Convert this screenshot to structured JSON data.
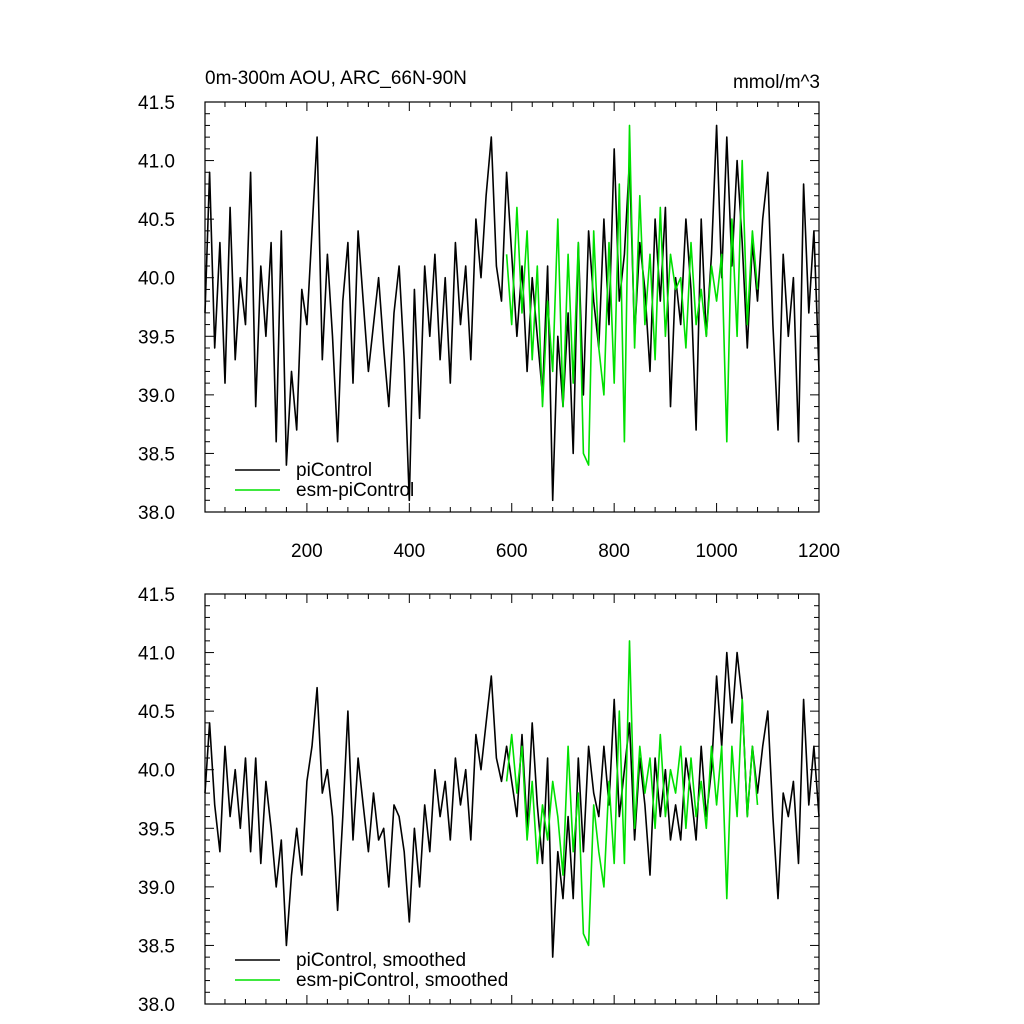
{
  "title_left": "0m-300m AOU, ARC_66N-90N",
  "title_right": "mmol/m^3",
  "colors": {
    "piControl": "#000000",
    "esm": "#00e000"
  },
  "chart_data": [
    {
      "type": "line",
      "xlim": [
        1,
        1200
      ],
      "ylim": [
        38.0,
        41.5
      ],
      "x_ticks": [
        200,
        400,
        600,
        800,
        1000,
        1200
      ],
      "y_ticks": [
        "38.0",
        "38.5",
        "39.0",
        "39.5",
        "40.0",
        "40.5",
        "41.0",
        "41.5"
      ],
      "legend_placement": "bottom-left",
      "series": [
        {
          "name": "piControl",
          "color": "#000000",
          "x": [
            1,
            10,
            20,
            30,
            40,
            50,
            60,
            70,
            80,
            90,
            100,
            110,
            120,
            130,
            140,
            150,
            160,
            170,
            180,
            190,
            200,
            210,
            220,
            230,
            240,
            250,
            260,
            270,
            280,
            290,
            300,
            310,
            320,
            330,
            340,
            350,
            360,
            370,
            380,
            390,
            400,
            410,
            420,
            430,
            440,
            450,
            460,
            470,
            480,
            490,
            500,
            510,
            520,
            530,
            540,
            550,
            560,
            570,
            580,
            590,
            600,
            610,
            620,
            630,
            640,
            650,
            660,
            670,
            680,
            690,
            700,
            710,
            720,
            730,
            740,
            750,
            760,
            770,
            780,
            790,
            800,
            810,
            820,
            830,
            840,
            850,
            860,
            870,
            880,
            890,
            900,
            910,
            920,
            930,
            940,
            950,
            960,
            970,
            980,
            990,
            1000,
            1010,
            1020,
            1030,
            1040,
            1050,
            1060,
            1070,
            1080,
            1090,
            1100,
            1110,
            1120,
            1130,
            1140,
            1150,
            1160,
            1170,
            1180,
            1190,
            1200
          ],
          "y": [
            39.7,
            40.9,
            39.4,
            40.3,
            39.1,
            40.6,
            39.3,
            40.0,
            39.6,
            40.9,
            38.9,
            40.1,
            39.5,
            40.3,
            38.6,
            40.4,
            38.4,
            39.2,
            38.7,
            39.9,
            39.6,
            40.4,
            41.2,
            39.3,
            40.2,
            39.5,
            38.6,
            39.8,
            40.3,
            39.1,
            40.4,
            39.8,
            39.2,
            39.6,
            40.0,
            39.4,
            38.9,
            39.7,
            40.1,
            39.3,
            38.1,
            39.9,
            38.8,
            40.1,
            39.5,
            40.2,
            39.3,
            40.0,
            39.1,
            40.3,
            39.6,
            40.1,
            39.3,
            40.5,
            40.0,
            40.7,
            41.2,
            40.1,
            39.8,
            40.9,
            40.2,
            39.5,
            40.1,
            39.2,
            40.0,
            39.5,
            39.0,
            40.1,
            38.1,
            39.5,
            38.9,
            39.7,
            38.5,
            40.3,
            39.0,
            40.4,
            39.8,
            39.4,
            40.5,
            39.6,
            41.1,
            39.8,
            40.2,
            41.0,
            39.5,
            40.3,
            39.9,
            39.2,
            40.5,
            39.8,
            40.6,
            38.9,
            40.0,
            39.6,
            40.5,
            39.9,
            38.7,
            40.5,
            39.5,
            40.2,
            41.3,
            40.0,
            41.2,
            40.1,
            41.0,
            40.3,
            39.4,
            40.3,
            39.8,
            40.5,
            40.9,
            39.6,
            38.7,
            40.2,
            39.5,
            40.0,
            38.6,
            40.8,
            39.7,
            40.4,
            39.2
          ],
          "label_y": 470
        },
        {
          "name": "esm-piControl",
          "color": "#00e000",
          "x": [
            590,
            600,
            610,
            620,
            630,
            640,
            650,
            660,
            670,
            680,
            690,
            700,
            710,
            720,
            730,
            740,
            750,
            760,
            770,
            780,
            790,
            800,
            810,
            820,
            830,
            840,
            850,
            860,
            870,
            880,
            890,
            900,
            910,
            920,
            930,
            940,
            950,
            960,
            970,
            980,
            990,
            1000,
            1010,
            1020,
            1030,
            1040,
            1050,
            1060,
            1070,
            1080
          ],
          "y": [
            40.2,
            39.6,
            40.6,
            39.7,
            40.4,
            39.3,
            40.1,
            38.9,
            39.8,
            39.2,
            40.5,
            38.9,
            40.2,
            39.1,
            40.3,
            38.5,
            38.4,
            40.4,
            39.4,
            39.0,
            40.3,
            39.1,
            40.8,
            38.6,
            41.3,
            39.4,
            40.7,
            39.6,
            40.2,
            39.3,
            40.6,
            39.5,
            40.2,
            39.9,
            40.0,
            39.4,
            40.3,
            39.6,
            39.9,
            39.5,
            40.1,
            39.8,
            40.2,
            38.6,
            40.5,
            39.5,
            41.0,
            39.6,
            40.4,
            39.9
          ],
          "label_y": 490
        }
      ]
    },
    {
      "type": "line",
      "xlim": [
        1,
        1200
      ],
      "ylim": [
        38.0,
        41.5
      ],
      "y_ticks": [
        "38.0",
        "38.5",
        "39.0",
        "39.5",
        "40.0",
        "40.5",
        "41.0",
        "41.5"
      ],
      "legend_placement": "bottom-left",
      "series": [
        {
          "name": "piControl, smoothed",
          "color": "#000000",
          "x": [
            1,
            10,
            20,
            30,
            40,
            50,
            60,
            70,
            80,
            90,
            100,
            110,
            120,
            130,
            140,
            150,
            160,
            170,
            180,
            190,
            200,
            210,
            220,
            230,
            240,
            250,
            260,
            270,
            280,
            290,
            300,
            310,
            320,
            330,
            340,
            350,
            360,
            370,
            380,
            390,
            400,
            410,
            420,
            430,
            440,
            450,
            460,
            470,
            480,
            490,
            500,
            510,
            520,
            530,
            540,
            550,
            560,
            570,
            580,
            590,
            600,
            610,
            620,
            630,
            640,
            650,
            660,
            670,
            680,
            690,
            700,
            710,
            720,
            730,
            740,
            750,
            760,
            770,
            780,
            790,
            800,
            810,
            820,
            830,
            840,
            850,
            860,
            870,
            880,
            890,
            900,
            910,
            920,
            930,
            940,
            950,
            960,
            970,
            980,
            990,
            1000,
            1010,
            1020,
            1030,
            1040,
            1050,
            1060,
            1070,
            1080,
            1090,
            1100,
            1110,
            1120,
            1130,
            1140,
            1150,
            1160,
            1170,
            1180,
            1190,
            1200
          ],
          "y": [
            39.8,
            40.4,
            39.7,
            39.3,
            40.2,
            39.6,
            40.0,
            39.5,
            40.1,
            39.3,
            40.1,
            39.2,
            39.9,
            39.5,
            39.0,
            39.4,
            38.5,
            39.1,
            39.5,
            39.1,
            39.9,
            40.2,
            40.7,
            39.8,
            40.0,
            39.6,
            38.8,
            39.6,
            40.5,
            39.4,
            40.1,
            39.7,
            39.3,
            39.8,
            39.4,
            39.5,
            39.0,
            39.7,
            39.6,
            39.3,
            38.7,
            39.5,
            39.0,
            39.7,
            39.3,
            40.0,
            39.6,
            39.9,
            39.4,
            40.1,
            39.7,
            40.0,
            39.4,
            40.3,
            40.0,
            40.4,
            40.8,
            40.1,
            39.9,
            40.2,
            39.9,
            39.6,
            40.3,
            39.5,
            40.4,
            39.7,
            39.2,
            40.1,
            38.4,
            39.3,
            38.9,
            39.6,
            38.9,
            40.1,
            39.3,
            40.2,
            39.8,
            39.6,
            40.2,
            39.7,
            40.6,
            39.6,
            40.0,
            40.4,
            39.4,
            40.1,
            39.7,
            39.1,
            40.1,
            39.6,
            40.0,
            39.4,
            39.7,
            39.4,
            40.1,
            39.8,
            39.4,
            40.2,
            39.6,
            40.0,
            40.8,
            40.2,
            41.0,
            40.4,
            41.0,
            40.6,
            39.6,
            40.2,
            39.8,
            40.2,
            40.5,
            39.6,
            38.9,
            39.8,
            39.6,
            39.9,
            39.2,
            40.6,
            39.7,
            40.2,
            39.6
          ],
          "label_y": 960
        },
        {
          "name": "esm-piControl, smoothed",
          "color": "#00e000",
          "x": [
            590,
            600,
            610,
            620,
            630,
            640,
            650,
            660,
            670,
            680,
            690,
            700,
            710,
            720,
            730,
            740,
            750,
            760,
            770,
            780,
            790,
            800,
            810,
            820,
            830,
            840,
            850,
            860,
            870,
            880,
            890,
            900,
            910,
            920,
            930,
            940,
            950,
            960,
            970,
            980,
            990,
            1000,
            1010,
            1020,
            1030,
            1040,
            1050,
            1060,
            1070,
            1080
          ],
          "y": [
            39.9,
            40.3,
            39.8,
            40.2,
            39.4,
            39.9,
            39.2,
            39.7,
            39.4,
            39.9,
            39.6,
            39.1,
            40.2,
            39.3,
            39.8,
            38.6,
            38.5,
            39.7,
            39.3,
            39.0,
            39.9,
            39.2,
            40.5,
            39.2,
            41.1,
            39.5,
            40.2,
            39.8,
            40.1,
            39.5,
            40.3,
            39.6,
            40.0,
            39.8,
            40.2,
            39.5,
            40.1,
            39.6,
            39.9,
            39.5,
            40.2,
            39.7,
            40.2,
            38.9,
            40.2,
            39.6,
            40.6,
            39.6,
            40.2,
            39.7
          ],
          "label_y": 980
        }
      ]
    }
  ]
}
